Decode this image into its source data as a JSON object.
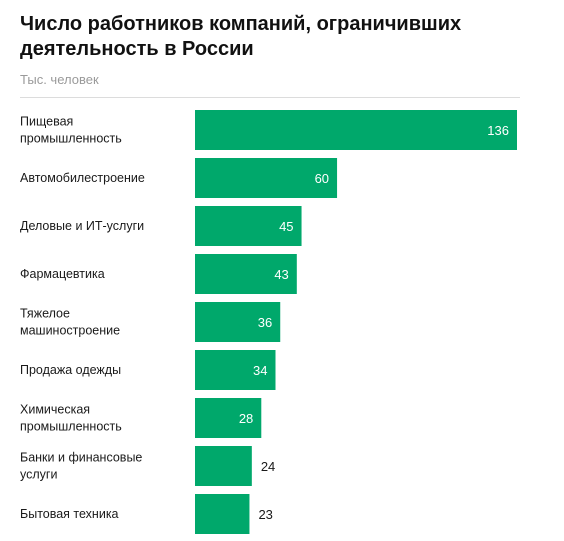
{
  "title": "Число работников компаний, ограничивших деятельность в России",
  "subtitle": "Тыс. человек",
  "colors": {
    "bar": "#00A86B",
    "text": "#1a1a1a",
    "label_inside": "#ffffff"
  },
  "chart_data": {
    "type": "bar",
    "orientation": "horizontal",
    "categories": [
      "Пищевая промышленность",
      "Автомобилестроение",
      "Деловые и ИТ-услуги",
      "Фармацевтика",
      "Тяжелое машиностроение",
      "Продажа одежды",
      "Химическая промышленность",
      "Банки и финансовые услуги",
      "Бытовая техника"
    ],
    "category_lines": [
      [
        "Пищевая",
        "промышленность"
      ],
      [
        "Автомобилестроение"
      ],
      [
        "Деловые и ИТ-услуги"
      ],
      [
        "Фармацевтика"
      ],
      [
        "Тяжелое",
        "машиностроение"
      ],
      [
        "Продажа одежды"
      ],
      [
        "Химическая",
        "промышленность"
      ],
      [
        "Банки и финансовые",
        "услуги"
      ],
      [
        "Бытовая техника"
      ]
    ],
    "values": [
      136,
      60,
      45,
      43,
      36,
      34,
      28,
      24,
      23
    ],
    "title": "Число работников компаний, ограничивших деятельность в России",
    "ylabel": "Тыс. человек",
    "xlim": [
      0,
      136
    ],
    "grid": false,
    "legend": "none"
  }
}
